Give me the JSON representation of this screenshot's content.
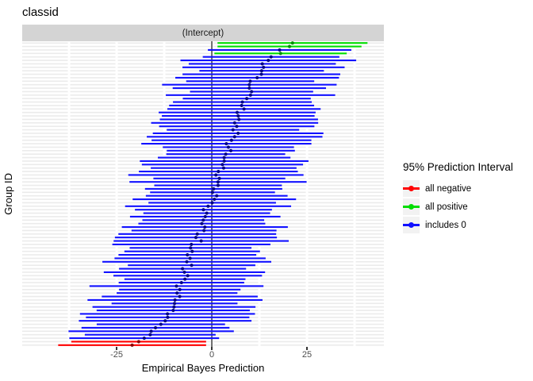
{
  "title": "classid",
  "facet_strip": {
    "label": "(Intercept)"
  },
  "axes": {
    "x": {
      "title": "Empirical Bayes Prediction",
      "tick_labels": [
        "-25",
        "0",
        "25"
      ],
      "tick_values": [
        -25,
        0,
        25
      ],
      "minor_values": [
        -37.5,
        -12.5,
        12.5,
        37.5
      ],
      "range": [
        -49.8,
        45.2
      ]
    },
    "y": {
      "title": "Group ID",
      "tick_labels": []
    }
  },
  "legend": {
    "title": "95% Prediction Interval",
    "items": [
      {
        "label": "all negative",
        "line_color": "#ff0000",
        "dot_color": "#ff0000"
      },
      {
        "label": "all positive",
        "line_color": "#00dd00",
        "dot_color": "#00dd00"
      },
      {
        "label": "includes 0",
        "line_color": "#1010ff",
        "dot_color": "#1010ff"
      }
    ]
  },
  "chart_data": {
    "type": "pointrange-caterpillar",
    "orientation": "horizontal",
    "n_groups": 88,
    "zero_reference_line": 0,
    "estimate_curve": {
      "center": 0.3,
      "linear": 13.8,
      "tail": 8,
      "tail_power": 9,
      "noise": 1.2
    },
    "interval_halfwidth": {
      "min": 15.5,
      "max": 23.5
    },
    "force_significant_ends": 2,
    "seed": 20240607,
    "categories": {
      "all_negative": {
        "rule": "upper < 0",
        "line": "#ff0000",
        "point": "#8b0000"
      },
      "all_positive": {
        "rule": "lower > 0",
        "line": "#00dd00",
        "point": "#009000"
      },
      "includes_0": {
        "rule": "interval contains 0",
        "line": "#1212ff",
        "point": "#000088"
      }
    },
    "style": {
      "panel_bg": "#ffffff",
      "row_stripe_color": "#ebebeb",
      "grid_gap_color": "#ffffff",
      "zero_line_color": "#222222",
      "bar_thickness": 2.2,
      "point_radius": 2.1
    }
  }
}
